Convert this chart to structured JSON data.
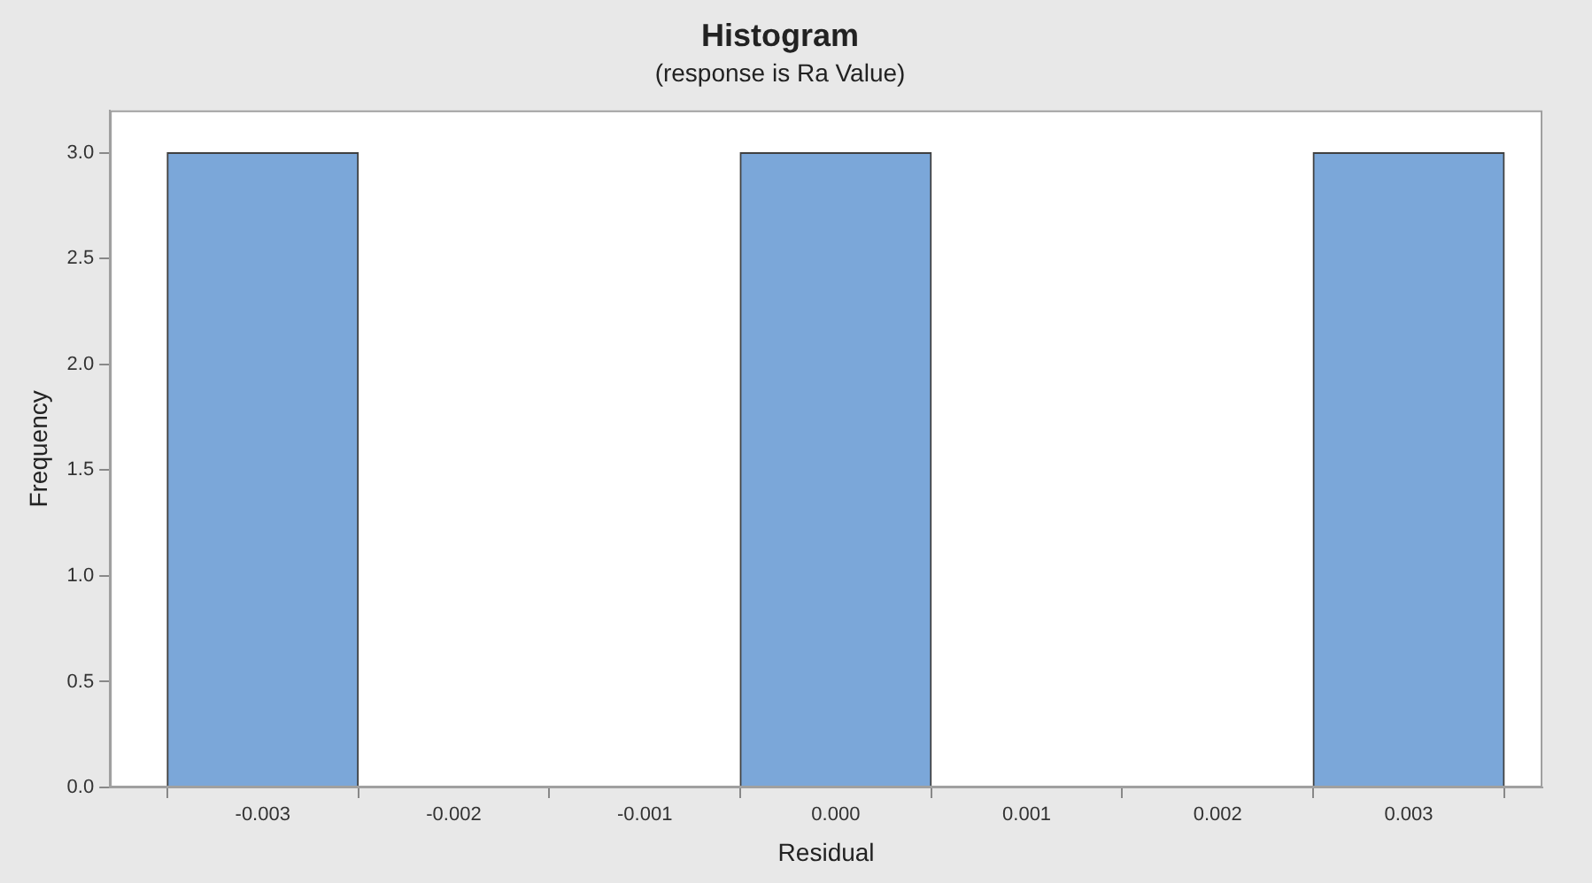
{
  "chart_data": {
    "type": "histogram",
    "title": "Histogram",
    "subtitle": "(response is Ra Value)",
    "xlabel": "Residual",
    "ylabel": "Frequency",
    "bins": [
      -0.0035,
      -0.0025,
      -0.0015,
      -0.0005,
      0.0005,
      0.0015,
      0.0025,
      0.0035
    ],
    "values": [
      3,
      0,
      0,
      3,
      0,
      0,
      3
    ],
    "color": "#7ba7d9",
    "xlim": [
      -0.0038,
      0.0037
    ],
    "xticks": [
      {
        "value": -0.003,
        "label": "-0.003"
      },
      {
        "value": -0.002,
        "label": "-0.002"
      },
      {
        "value": -0.001,
        "label": "-0.001"
      },
      {
        "value": 0,
        "label": "0.000"
      },
      {
        "value": 0.001,
        "label": "0.001"
      },
      {
        "value": 0.002,
        "label": "0.002"
      },
      {
        "value": 0.003,
        "label": "0.003"
      }
    ],
    "ylim": [
      0,
      3.2
    ],
    "yticks": [
      {
        "value": 0,
        "label": "0.0"
      },
      {
        "value": 0.5,
        "label": "0.5"
      },
      {
        "value": 1,
        "label": "1.0"
      },
      {
        "value": 1.5,
        "label": "1.5"
      },
      {
        "value": 2,
        "label": "2.0"
      },
      {
        "value": 2.5,
        "label": "2.5"
      },
      {
        "value": 3,
        "label": "3.0"
      }
    ],
    "grid": false,
    "legend": false
  }
}
